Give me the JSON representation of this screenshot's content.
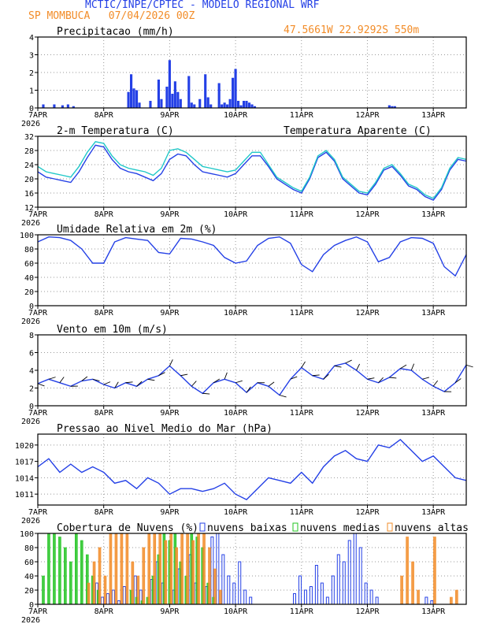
{
  "header": {
    "title": "MCTIC/INPE/CPTEC - MODELO REGIONAL WRF",
    "station": "SP MOMBUCA",
    "run": "07/04/2026 00Z",
    "location": "47.5661W 22.9292S 550m"
  },
  "x_axis": {
    "labels": [
      "7APR",
      "8APR",
      "9APR",
      "10APR",
      "11APR",
      "12APR",
      "13APR"
    ],
    "year": "2026",
    "range_hours": [
      0,
      156
    ]
  },
  "colors": {
    "blue": "#2440e6",
    "cyan": "#20c8c8",
    "orange": "#f28c28",
    "green": "#22c422",
    "black": "#000000"
  },
  "chart_data": [
    {
      "type": "bar",
      "title": "Precipitacao (mm/h)",
      "ylim": [
        0,
        4
      ],
      "yticks": [
        "0",
        "1",
        "2",
        "3",
        "4"
      ],
      "x_hours": [
        2,
        6,
        9,
        11,
        13,
        33,
        34,
        35,
        36,
        37,
        41,
        44,
        45,
        47,
        48,
        49,
        50,
        51,
        52,
        55,
        56,
        57,
        59,
        61,
        62,
        63,
        66,
        67,
        68,
        69,
        70,
        71,
        72,
        73,
        74,
        75,
        76,
        77,
        78,
        79,
        128,
        129,
        130
      ],
      "values": [
        0.2,
        0.2,
        0.15,
        0.2,
        0.1,
        0.9,
        1.9,
        1.1,
        1.0,
        0.3,
        0.4,
        1.6,
        0.5,
        1.2,
        2.7,
        0.8,
        1.5,
        0.9,
        0.5,
        1.8,
        0.3,
        0.2,
        0.5,
        1.9,
        0.6,
        0.2,
        1.4,
        0.2,
        0.3,
        0.2,
        0.5,
        1.7,
        2.2,
        0.4,
        0.15,
        0.4,
        0.4,
        0.3,
        0.2,
        0.1,
        0.15,
        0.1,
        0.1
      ],
      "color": "#2440e6"
    },
    {
      "type": "line",
      "title": "2-m Temperatura (C)",
      "ylim": [
        12,
        32
      ],
      "yticks": [
        "12",
        "16",
        "20",
        "24",
        "28",
        "32"
      ],
      "x": [
        0,
        3,
        6,
        9,
        12,
        15,
        18,
        21,
        24,
        27,
        30,
        33,
        36,
        39,
        42,
        45,
        48,
        51,
        54,
        57,
        60,
        63,
        66,
        69,
        72,
        75,
        78,
        81,
        84,
        87,
        90,
        93,
        96,
        99,
        102,
        105,
        108,
        111,
        114,
        117,
        120,
        123,
        126,
        129,
        132,
        135,
        138,
        141,
        144,
        147,
        150,
        153,
        156
      ],
      "series": [
        {
          "name": "2-m Temperatura (C)",
          "color": "#2440e6",
          "values": [
            22,
            20.5,
            20,
            19.5,
            19,
            22,
            26,
            29.5,
            29,
            25.5,
            23,
            22,
            21.5,
            20.5,
            19.5,
            21.5,
            25.5,
            27,
            26.5,
            24,
            22,
            21.5,
            21,
            20.5,
            21.5,
            24,
            26.5,
            26.5,
            23.5,
            20,
            18.5,
            17,
            16,
            20,
            26,
            27.5,
            25,
            20,
            18,
            16,
            15.5,
            18.5,
            22.5,
            23.5,
            21,
            18,
            17,
            15,
            14,
            17,
            22.5,
            25.5,
            25
          ]
        },
        {
          "name": "Temperatura Aparente (C)",
          "color": "#20c8c8",
          "values": [
            23.5,
            22,
            21.5,
            21,
            20.5,
            23.5,
            27.5,
            30.5,
            30,
            26.5,
            24,
            23,
            22.5,
            22,
            21,
            23,
            28,
            28.5,
            27.5,
            25.5,
            23.5,
            23,
            22.5,
            22,
            22.5,
            25,
            27.5,
            27.5,
            24,
            20.5,
            19,
            17.5,
            16.5,
            20.5,
            26.5,
            28,
            25.5,
            20.5,
            18.5,
            16.5,
            16,
            19,
            23,
            24,
            21.5,
            18.5,
            17.5,
            15.5,
            14.5,
            17.5,
            23,
            26,
            25.5
          ]
        }
      ]
    },
    {
      "type": "line",
      "title": "Umidade Relativa em 2m (%)",
      "ylim": [
        0,
        100
      ],
      "yticks": [
        "0",
        "20",
        "40",
        "60",
        "80",
        "100"
      ],
      "x": [
        0,
        4,
        8,
        12,
        16,
        20,
        24,
        28,
        32,
        36,
        40,
        44,
        48,
        52,
        56,
        60,
        64,
        68,
        72,
        76,
        80,
        84,
        88,
        92,
        96,
        100,
        104,
        108,
        112,
        116,
        120,
        124,
        128,
        132,
        136,
        140,
        144,
        148,
        152,
        156
      ],
      "series": [
        {
          "name": "Umidade Relativa em 2m (%)",
          "color": "#2440e6",
          "values": [
            90,
            97,
            96,
            92,
            80,
            60,
            60,
            90,
            96,
            94,
            92,
            75,
            73,
            95,
            94,
            90,
            85,
            68,
            60,
            63,
            85,
            95,
            97,
            88,
            58,
            48,
            72,
            85,
            92,
            97,
            90,
            62,
            68,
            90,
            96,
            95,
            88,
            55,
            42,
            72
          ]
        }
      ]
    },
    {
      "type": "line",
      "title": "Vento em 10m (m/s)",
      "ylim": [
        0,
        8
      ],
      "yticks": [
        "0",
        "2",
        "4",
        "6",
        "8"
      ],
      "x": [
        0,
        4,
        8,
        12,
        16,
        20,
        24,
        28,
        32,
        36,
        40,
        44,
        48,
        52,
        56,
        60,
        64,
        68,
        72,
        76,
        80,
        84,
        88,
        92,
        96,
        100,
        104,
        108,
        112,
        116,
        120,
        124,
        128,
        132,
        136,
        140,
        144,
        148,
        152,
        156
      ],
      "series": [
        {
          "name": "Vento em 10m (m/s)",
          "color": "#2440e6",
          "values": [
            2.5,
            3,
            2.6,
            2.2,
            2.8,
            3,
            2.4,
            2,
            2.6,
            2.2,
            3,
            3.4,
            4.5,
            3.4,
            2.2,
            1.4,
            2.6,
            3,
            2.6,
            1.5,
            2.6,
            2.2,
            1.2,
            3,
            4.3,
            3.4,
            3,
            4.5,
            4.8,
            4,
            3,
            2.6,
            3.2,
            4.2,
            4,
            3,
            2.2,
            1.6,
            2.6,
            4.6
          ]
        }
      ]
    },
    {
      "type": "line",
      "title": "Pressao ao Nivel Medio do Mar (hPa)",
      "ylim": [
        1009,
        1022
      ],
      "yticks": [
        "1011",
        "1014",
        "1017",
        "1020"
      ],
      "x": [
        0,
        4,
        8,
        12,
        16,
        20,
        24,
        28,
        32,
        36,
        40,
        44,
        48,
        52,
        56,
        60,
        64,
        68,
        72,
        76,
        80,
        84,
        88,
        92,
        96,
        100,
        104,
        108,
        112,
        116,
        120,
        124,
        128,
        132,
        136,
        140,
        144,
        148,
        152,
        156
      ],
      "series": [
        {
          "name": "Pressao ao Nivel Medio do Mar (hPa)",
          "color": "#2440e6",
          "values": [
            1016,
            1017.5,
            1015,
            1016.5,
            1015,
            1016,
            1015,
            1013,
            1013.5,
            1012,
            1014,
            1013,
            1011,
            1012,
            1012,
            1011.5,
            1012,
            1013,
            1011,
            1010,
            1012,
            1014,
            1013.5,
            1013,
            1015,
            1013,
            1016,
            1018,
            1019,
            1017.5,
            1017,
            1020,
            1019.5,
            1021,
            1019,
            1017,
            1018,
            1016,
            1014,
            1013.5
          ]
        }
      ]
    },
    {
      "type": "bar",
      "title": "Cobertura de Nuvens (%)",
      "ylim": [
        0,
        100
      ],
      "yticks": [
        "0",
        "20",
        "40",
        "60",
        "80",
        "100"
      ],
      "legend": [
        "nuvens baixas",
        "nuvens medias",
        "nuvens altas"
      ],
      "series": [
        {
          "name": "nuvens baixas",
          "color": "#2440e6",
          "x_hours": [
            22,
            24,
            26,
            28,
            30,
            32,
            36,
            38,
            42,
            44,
            46,
            50,
            52,
            56,
            58,
            62,
            64,
            66,
            68,
            70,
            72,
            74,
            76,
            78,
            94,
            96,
            98,
            100,
            102,
            104,
            106,
            108,
            110,
            112,
            114,
            116,
            118,
            120,
            122,
            124,
            142,
            144
          ],
          "values": [
            30,
            10,
            15,
            20,
            5,
            25,
            40,
            20,
            35,
            60,
            30,
            20,
            50,
            70,
            30,
            25,
            95,
            100,
            70,
            40,
            30,
            60,
            20,
            10,
            15,
            40,
            20,
            25,
            55,
            30,
            10,
            40,
            70,
            60,
            90,
            100,
            80,
            30,
            20,
            10,
            10,
            5
          ]
        },
        {
          "name": "nuvens medias",
          "color": "#22c422",
          "x_hours": [
            2,
            4,
            6,
            8,
            10,
            12,
            14,
            16,
            18,
            20,
            22,
            34,
            36,
            38,
            40,
            42,
            44,
            46,
            48,
            50,
            52,
            54,
            56,
            58,
            60,
            62,
            64
          ],
          "values": [
            40,
            100,
            100,
            95,
            80,
            60,
            100,
            90,
            70,
            40,
            20,
            20,
            10,
            5,
            10,
            40,
            70,
            100,
            90,
            100,
            60,
            40,
            100,
            95,
            80,
            30,
            10
          ]
        },
        {
          "name": "nuvens altas",
          "color": "#f28c28",
          "x_hours": [
            18,
            20,
            22,
            24,
            26,
            28,
            30,
            32,
            34,
            36,
            38,
            40,
            42,
            44,
            46,
            48,
            50,
            52,
            54,
            56,
            58,
            60,
            62,
            64,
            66,
            132,
            134,
            136,
            138,
            144,
            150,
            152
          ],
          "values": [
            30,
            60,
            80,
            40,
            100,
            100,
            100,
            100,
            60,
            40,
            80,
            100,
            100,
            100,
            90,
            100,
            80,
            100,
            100,
            90,
            100,
            100,
            80,
            50,
            20,
            40,
            95,
            60,
            20,
            95,
            10,
            20
          ]
        }
      ]
    }
  ]
}
